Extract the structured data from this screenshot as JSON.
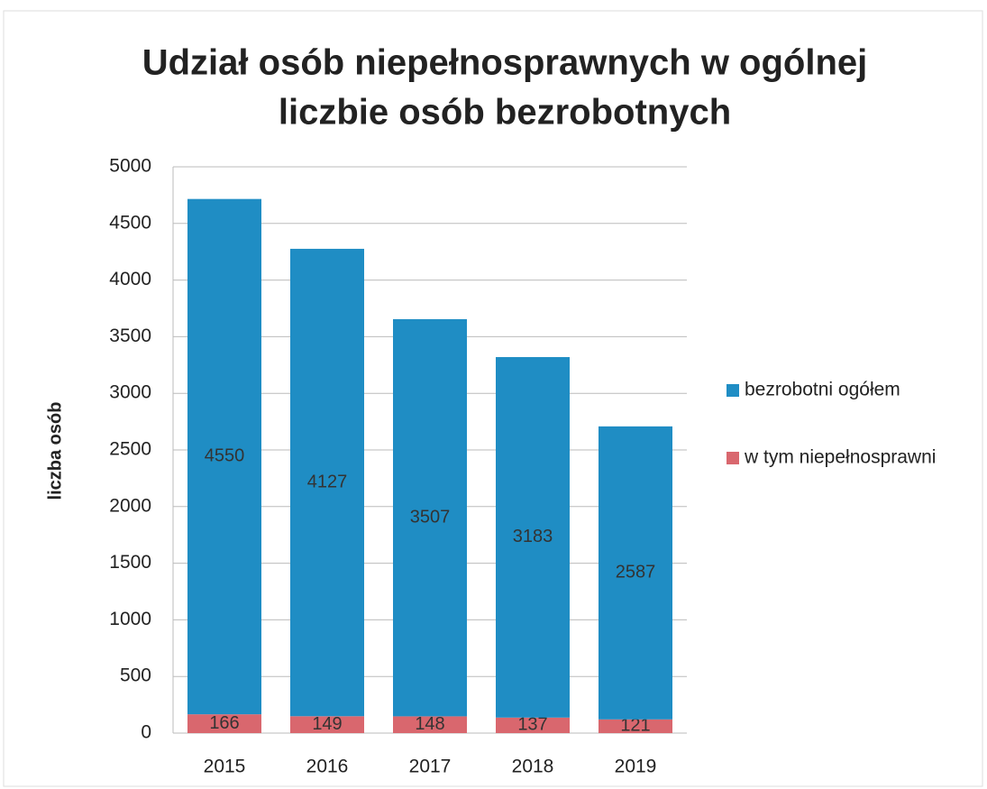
{
  "chart_data": {
    "type": "stacked_bar",
    "title": [
      "Udział osób niepełnosprawnych w ogólnej",
      "liczbie osób bezrobotnych"
    ],
    "y_label": "liczba osób",
    "categories": [
      "2015",
      "2016",
      "2017",
      "2018",
      "2019"
    ],
    "series": [
      {
        "name": "bezrobotni ogółem",
        "color": "#1f8dc4",
        "values": [
          4550,
          4127,
          3507,
          3183,
          2587
        ]
      },
      {
        "name": "w tym niepełnosprawni",
        "color": "#d9676e",
        "values": [
          166,
          149,
          148,
          137,
          121
        ]
      }
    ],
    "ylim": [
      0,
      5000
    ],
    "yticks": [
      0,
      500,
      1000,
      1500,
      2000,
      2500,
      3000,
      3500,
      4000,
      4500,
      5000
    ],
    "grid": true,
    "legend": "right"
  }
}
